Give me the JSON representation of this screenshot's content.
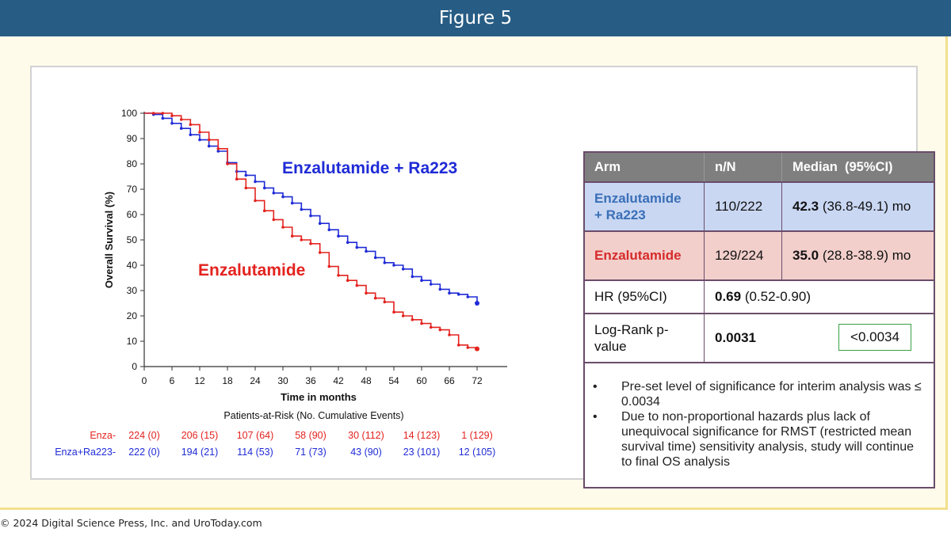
{
  "figure_title": "Figure 5",
  "footer": "© 2024 Digital Science Press, Inc. and UroToday.com",
  "chart_data": {
    "type": "line",
    "title": "",
    "xlabel": "Time in months",
    "ylabel": "Overall Survival (%)",
    "xlim": [
      0,
      72
    ],
    "ylim": [
      0,
      100
    ],
    "xticks": [
      0,
      6,
      12,
      18,
      24,
      30,
      36,
      42,
      48,
      54,
      60,
      66,
      72
    ],
    "yticks": [
      0,
      10,
      20,
      30,
      40,
      50,
      60,
      70,
      80,
      90,
      100
    ],
    "grid": false,
    "series": [
      {
        "name": "Enzalutamide + Ra223",
        "color": "#1f2bd6",
        "x": [
          0,
          2,
          4,
          6,
          8,
          10,
          12,
          14,
          16,
          18,
          20,
          22,
          24,
          26,
          28,
          30,
          32,
          34,
          36,
          38,
          40,
          42,
          44,
          46,
          48,
          50,
          52,
          54,
          56,
          58,
          60,
          62,
          64,
          66,
          68,
          70,
          72
        ],
        "y": [
          100,
          99.5,
          98,
          96,
          94,
          91.5,
          89.5,
          87,
          85,
          80.5,
          77,
          75.5,
          73,
          70.5,
          68.5,
          67,
          64.5,
          62,
          59.5,
          56.5,
          54,
          51.5,
          49,
          47,
          45.5,
          43,
          41,
          40,
          38.5,
          35.5,
          34,
          32.5,
          30.5,
          29,
          28.5,
          27.5,
          25
        ]
      },
      {
        "name": "Enzalutamide",
        "color": "#e3231f",
        "x": [
          0,
          2,
          4,
          6,
          8,
          10,
          12,
          14,
          16,
          18,
          20,
          22,
          24,
          26,
          28,
          30,
          32,
          34,
          36,
          38,
          40,
          42,
          44,
          46,
          48,
          50,
          52,
          54,
          56,
          58,
          60,
          62,
          64,
          66,
          68,
          70,
          72
        ],
        "y": [
          100,
          100,
          100,
          99,
          97.5,
          95.5,
          92.5,
          89.5,
          86,
          80,
          74,
          70.5,
          65.5,
          61.5,
          58,
          55,
          51.5,
          50,
          48.5,
          45,
          39.5,
          36,
          34,
          32,
          29,
          27,
          25.5,
          21.5,
          20,
          18.5,
          17,
          15.5,
          14.5,
          12.5,
          8.5,
          7.5,
          7
        ]
      }
    ],
    "annotations": [
      "Enzalutamide + Ra223",
      "Enzalutamide"
    ],
    "at_risk": {
      "title": "Patients-at-Risk (No. Cumulative Events)",
      "times": [
        0,
        12,
        24,
        36,
        48,
        60,
        72
      ],
      "rows": [
        {
          "label": "Enza-",
          "color": "#e3231f",
          "values": [
            "224 (0)",
            "206 (15)",
            "107 (64)",
            "58 (90)",
            "30 (112)",
            "14 (123)",
            "1 (129)"
          ]
        },
        {
          "label": "Enza+Ra223-",
          "color": "#1f2bd6",
          "values": [
            "222 (0)",
            "194 (21)",
            "114 (53)",
            "71 (73)",
            "43 (90)",
            "23 (101)",
            "12 (105)"
          ]
        }
      ]
    }
  },
  "table": {
    "headers": {
      "arm": "Arm",
      "n": "n/N",
      "median": "Median  (95%CI)"
    },
    "combo": {
      "arm": "Enzalutamide\n+ Ra223",
      "n": "110/222",
      "median_bold": "42.3",
      "median_rest": " (36.8-49.1) mo",
      "arm_color": "#3a6fb7",
      "bg": "#c9d7f3"
    },
    "enza": {
      "arm": "Enzalutamide",
      "n": "129/224",
      "median_bold": "35.0",
      "median_rest": " (28.8-38.9) mo",
      "arm_color": "#d62b2b",
      "bg": "#f2cfcb"
    },
    "hr": {
      "label": "HR (95%CI)",
      "value_bold": "0.69",
      "value_rest": " (0.52-0.90)"
    },
    "logrank": {
      "label": "Log-Rank p-\nvalue",
      "value": "0.0031",
      "threshold": "<0.0034"
    },
    "notes": [
      "Pre-set level of significance for interim analysis was ≤ 0.0034",
      "Due to non-proportional hazards plus lack of unequivocal significance for RMST (restricted mean survival time) sensitivity analysis, study will continue to final OS analysis"
    ],
    "bullet": "•"
  }
}
